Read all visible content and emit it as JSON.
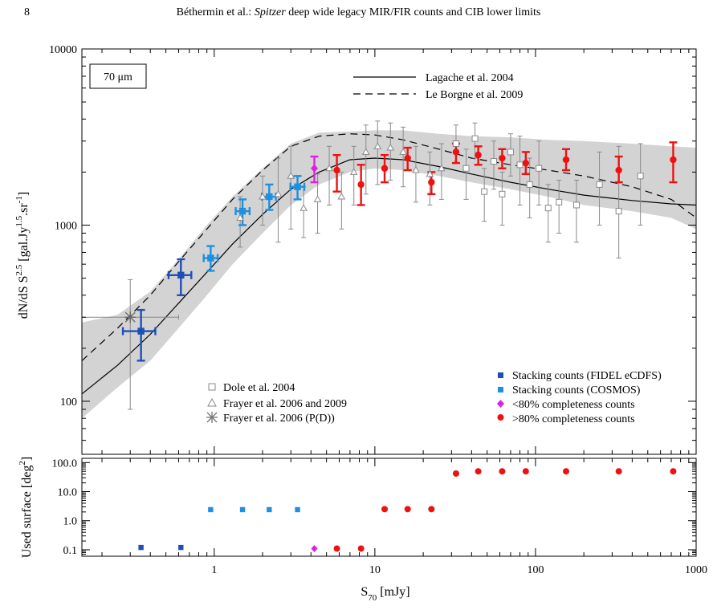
{
  "header": {
    "page_number": "8",
    "authors": "Béthermin et al.: ",
    "title_italic": "Spitzer",
    "title_rest": " deep wide legacy MIR/FIR counts and CIB lower limits"
  },
  "colors": {
    "fidel": "#1f4fb5",
    "cosmos": "#1e90e0",
    "below80": "#e020e0",
    "above80": "#ee1111",
    "literature": "#8a8a8a",
    "band": "#d3d3d3"
  },
  "chart_data": [
    {
      "type": "scatter",
      "panel": "counts",
      "x_scale": "log",
      "y_scale": "log",
      "xlim": [
        0.15,
        1000
      ],
      "ylim": [
        50,
        10000
      ],
      "xlabel": "",
      "ylabel_main": "dN/dS S",
      "ylabel_exp": "2.5",
      "ylabel_unit_a": " [gal.Jy",
      "ylabel_unit_exp1": "1.5",
      "ylabel_unit_b": ".sr",
      "ylabel_unit_exp2": "-1",
      "ylabel_unit_c": "]",
      "x_tick_labels": [
        "",
        "",
        "",
        ""
      ],
      "y_ticks": [
        100,
        1000,
        10000
      ],
      "y_tick_labels": [
        "100",
        "1000",
        "10000"
      ],
      "band_label": "70 μm",
      "models": [
        {
          "name": "Lagache et al. 2004",
          "style": "solid",
          "x": [
            0.15,
            0.25,
            0.4,
            0.6,
            0.9,
            1.3,
            2,
            3,
            4.5,
            7,
            10,
            15,
            25,
            40,
            70,
            120,
            200,
            400,
            700,
            1000
          ],
          "y": [
            110,
            160,
            240,
            360,
            540,
            780,
            1150,
            1600,
            2000,
            2350,
            2400,
            2350,
            2150,
            1950,
            1750,
            1600,
            1480,
            1380,
            1320,
            1300
          ]
        },
        {
          "name": "Le Borgne et al. 2009",
          "style": "dashed",
          "x": [
            0.15,
            0.25,
            0.4,
            0.6,
            0.9,
            1.3,
            2,
            3,
            4.5,
            7,
            10,
            15,
            25,
            40,
            70,
            120,
            200,
            400,
            700,
            1000
          ],
          "y": [
            170,
            260,
            400,
            620,
            950,
            1400,
            2050,
            2800,
            3200,
            3300,
            3250,
            3050,
            2700,
            2400,
            2200,
            2050,
            1900,
            1650,
            1400,
            1100
          ]
        }
      ],
      "band": {
        "x": [
          0.15,
          0.25,
          0.4,
          0.6,
          0.9,
          1.3,
          2,
          3,
          4.5,
          7,
          10,
          15,
          25,
          40,
          70,
          120,
          200,
          400,
          700,
          1000
        ],
        "lower": [
          80,
          120,
          170,
          260,
          400,
          600,
          900,
          1300,
          1700,
          2000,
          2100,
          2050,
          1900,
          1750,
          1600,
          1450,
          1300,
          1200,
          1100,
          950
        ],
        "upper": [
          280,
          310,
          420,
          640,
          1000,
          1450,
          2100,
          2900,
          3350,
          3400,
          3450,
          3450,
          3300,
          3200,
          3150,
          3050,
          3000,
          2900,
          2800,
          2750
        ]
      },
      "series": [
        {
          "name": "Dole et al. 2004",
          "marker": "open-square",
          "x": [
            32,
            37,
            42,
            48,
            55,
            62,
            70,
            80,
            92,
            105,
            120,
            140,
            180,
            250,
            330,
            450
          ],
          "y": [
            2900,
            2100,
            3100,
            1550,
            2300,
            1500,
            2600,
            2200,
            1700,
            2100,
            1250,
            1350,
            1300,
            1700,
            1200,
            1900
          ],
          "ylow": [
            2300,
            1400,
            2400,
            1050,
            1600,
            1000,
            1900,
            1300,
            1100,
            1300,
            800,
            900,
            800,
            1000,
            650,
            1000
          ],
          "yhigh": [
            3700,
            2700,
            3800,
            2100,
            3000,
            2000,
            3300,
            3200,
            2400,
            3000,
            1700,
            1800,
            1800,
            2600,
            2800,
            2900
          ]
        },
        {
          "name": "Frayer et al. 2006 and 2009",
          "marker": "open-triangle",
          "x": [
            1.45,
            2,
            2.5,
            3,
            3.6,
            4.4,
            5.2,
            6.2,
            7.4,
            8.8,
            10.4,
            12.5,
            15,
            18,
            22,
            26
          ],
          "y": [
            1100,
            1450,
            1500,
            1900,
            1250,
            1400,
            2100,
            1450,
            2000,
            2600,
            2800,
            2750,
            2600,
            2050,
            1950,
            2100
          ],
          "ylow": [
            750,
            1000,
            800,
            950,
            850,
            900,
            1300,
            950,
            1300,
            1500,
            1700,
            1800,
            1650,
            1350,
            1300,
            1400
          ],
          "yhigh": [
            1450,
            1900,
            2400,
            2800,
            1650,
            1950,
            2800,
            2000,
            2800,
            3700,
            3900,
            3800,
            3600,
            2800,
            2600,
            2900
          ]
        },
        {
          "name": "Frayer et al. 2006 (P(D))",
          "marker": "asterisk",
          "x": [
            0.3
          ],
          "y": [
            300
          ],
          "ylow": [
            90
          ],
          "yhigh": [
            490
          ],
          "xlow": [
            0.15
          ],
          "xhigh": [
            0.6
          ]
        },
        {
          "name": "Stacking counts (FIDEL eCDFS)",
          "marker": "filled-square",
          "x": [
            0.35,
            0.62
          ],
          "y": [
            250,
            520
          ],
          "ylow": [
            170,
            400
          ],
          "yhigh": [
            330,
            640
          ],
          "xlow": [
            0.27,
            0.52
          ],
          "xhigh": [
            0.43,
            0.72
          ]
        },
        {
          "name": "Stacking counts (COSMOS)",
          "marker": "filled-square",
          "x": [
            0.95,
            1.5,
            2.2,
            3.3
          ],
          "y": [
            650,
            1200,
            1450,
            1650
          ],
          "ylow": [
            550,
            1000,
            1220,
            1400
          ],
          "yhigh": [
            760,
            1400,
            1700,
            1900
          ],
          "xlow": [
            0.86,
            1.36,
            1.98,
            2.98
          ],
          "xhigh": [
            1.05,
            1.66,
            2.42,
            3.64
          ]
        },
        {
          "name": "<80% completeness counts",
          "marker": "filled-diamond",
          "x": [
            4.2
          ],
          "y": [
            2100
          ],
          "ylow": [
            1750
          ],
          "yhigh": [
            2450
          ]
        },
        {
          "name": ">80% completeness counts",
          "marker": "filled-circle",
          "x": [
            5.8,
            8.2,
            11.5,
            16,
            22.5,
            32,
            44,
            62,
            87,
            155,
            330,
            720
          ],
          "y": [
            2050,
            1700,
            2100,
            2400,
            1750,
            2600,
            2500,
            2400,
            2250,
            2350,
            2050,
            2350
          ],
          "ylow": [
            1550,
            1300,
            1750,
            2050,
            1500,
            2250,
            2200,
            2100,
            1950,
            2050,
            1750,
            1750
          ],
          "yhigh": [
            2500,
            2200,
            2500,
            2750,
            2000,
            2900,
            2800,
            2700,
            2600,
            2700,
            2450,
            2950
          ]
        }
      ]
    },
    {
      "type": "scatter",
      "panel": "used_surface",
      "x_scale": "log",
      "y_scale": "log",
      "xlim": [
        0.15,
        1000
      ],
      "ylim": [
        0.06,
        140
      ],
      "xlabel_main": "S",
      "xlabel_sub": "70",
      "xlabel_unit": " [mJy]",
      "ylabel_main": "Used surface [deg",
      "ylabel_exp": "2",
      "ylabel_end": "]",
      "x_ticks": [
        1,
        10,
        100,
        1000
      ],
      "x_tick_labels": [
        "1",
        "10",
        "100",
        "1000"
      ],
      "y_ticks": [
        0.1,
        1.0,
        10.0,
        100.0
      ],
      "y_tick_labels": [
        "0.1",
        "1.0",
        "10.0",
        "100.0"
      ],
      "series": [
        {
          "name": "Stacking counts (FIDEL eCDFS)",
          "marker": "filled-square",
          "x": [
            0.35,
            0.62
          ],
          "y": [
            0.12,
            0.12
          ]
        },
        {
          "name": "Stacking counts (COSMOS)",
          "marker": "filled-square",
          "x": [
            0.95,
            1.5,
            2.2,
            3.3
          ],
          "y": [
            2.4,
            2.4,
            2.4,
            2.4
          ]
        },
        {
          "name": "<80% completeness counts",
          "marker": "filled-diamond",
          "x": [
            4.2
          ],
          "y": [
            0.11
          ]
        },
        {
          "name": ">80% completeness counts",
          "marker": "filled-circle",
          "x": [
            5.8,
            8.2,
            11.5,
            16,
            22.5,
            32,
            44,
            62,
            87,
            155,
            330,
            720
          ],
          "y": [
            0.11,
            0.11,
            2.5,
            2.5,
            2.5,
            42,
            50,
            50,
            50,
            50,
            50,
            50
          ]
        }
      ]
    }
  ]
}
